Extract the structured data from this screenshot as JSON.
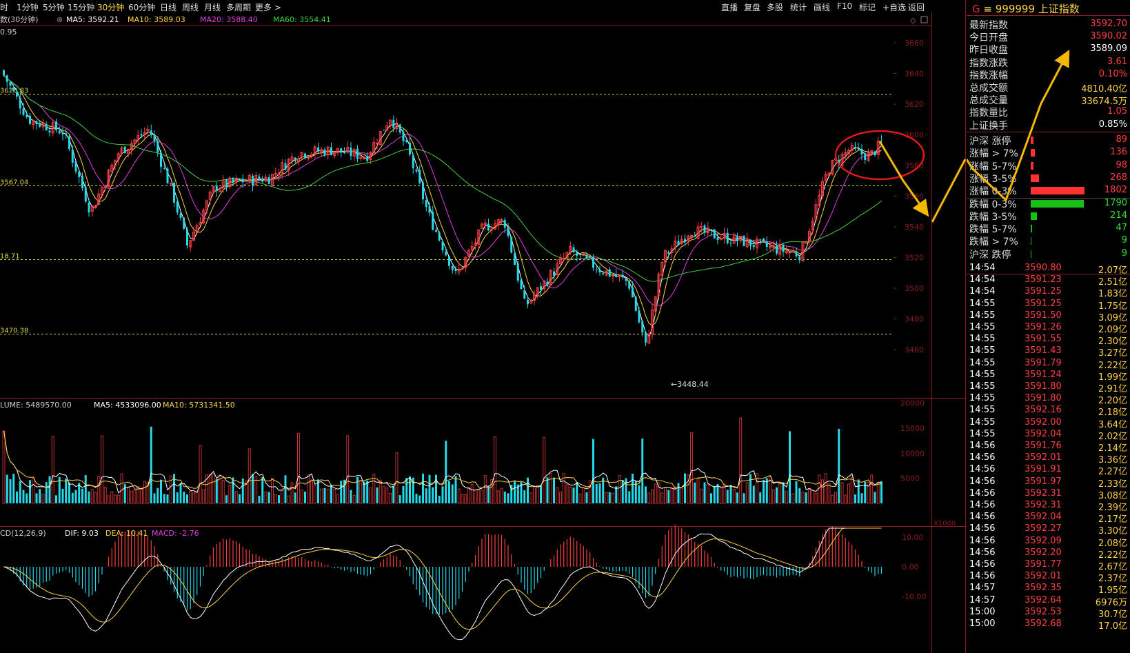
{
  "toolbar": {
    "periods": [
      "时",
      "1分钟",
      "5分钟",
      "15分钟",
      "30分钟",
      "60分钟",
      "日线",
      "周线",
      "月线",
      "多周期",
      "更多 >"
    ],
    "active_period": "30分钟",
    "actions": [
      "直播",
      "复盘",
      "多股",
      "统计",
      "画线",
      "F10",
      "标记",
      "+自选",
      "返回"
    ]
  },
  "indicator_bar": {
    "name": "数(30分钟)",
    "ma5": "MA5: 3592.21",
    "ma10": "MA10: 3589.03",
    "ma20": "MA20: 3588.40",
    "ma60": "MA60: 3554.41",
    "sub": "0.95"
  },
  "colors": {
    "up": "#ff4040",
    "down": "#26d9e8",
    "ma5": "#ffffff",
    "ma10": "#ffd24a",
    "ma20": "#e040e0",
    "ma60": "#40d040",
    "grid": "#8a1c1c",
    "level_line": "#d8d840",
    "annotation_arrow": "#f5b800",
    "annotation_circle": "#e01818"
  },
  "price_axis": [
    "3660",
    "3640",
    "3620",
    "3600",
    "3580",
    "3560",
    "3540",
    "3520",
    "3500",
    "3480",
    "3460"
  ],
  "price_levels": [
    {
      "label": "3626.83",
      "value": 3626.83
    },
    {
      "label": "3567.04",
      "value": 3567.04
    },
    {
      "label": "18.71",
      "value": 3518.71
    },
    {
      "label": "3470.38",
      "value": 3470.38
    }
  ],
  "low_marker": "3448.44",
  "volume_bar": {
    "volume": "LUME: 5489570.00",
    "ma5": "MA5: 4533096.00",
    "ma10": "MA10: 5731341.50"
  },
  "volume_axis": [
    "20000",
    "15000",
    "10000",
    "5000"
  ],
  "volume_unit": "X1000",
  "macd_bar": {
    "name": "CD(12,26,9)",
    "dif": "DIF: 9.03",
    "dea": "DEA: 10.41",
    "macd": "MACD: -2.76"
  },
  "macd_axis": [
    "10.00",
    "0.00",
    "-10.00"
  ],
  "quote": {
    "prefix": "G",
    "title": "≡ 999999 上证指数",
    "rows": [
      {
        "label": "最新指数",
        "value": "3592.70",
        "color": "red"
      },
      {
        "label": "今日开盘",
        "value": "3590.02",
        "color": "red"
      },
      {
        "label": "昨日收盘",
        "value": "3589.09",
        "color": "white"
      },
      {
        "label": "指数涨跌",
        "value": "3.61",
        "color": "red"
      },
      {
        "label": "指数涨幅",
        "value": "0.10%",
        "color": "red"
      },
      {
        "label": "总成交额",
        "value": "4810.40亿",
        "color": "yellow"
      },
      {
        "label": "总成交量",
        "value": "33674.5万",
        "color": "yellow"
      },
      {
        "label": "指数量比",
        "value": "1.05",
        "color": "red"
      },
      {
        "label": "上证换手",
        "value": "0.85%",
        "color": "white"
      }
    ],
    "breadth": [
      {
        "label": "沪深 涨停",
        "value": "89",
        "count": 89,
        "dir": "up"
      },
      {
        "label": "涨幅 > 7%",
        "value": "136",
        "count": 136,
        "dir": "up"
      },
      {
        "label": "涨幅 5-7%",
        "value": "98",
        "count": 98,
        "dir": "up"
      },
      {
        "label": "涨幅 3-5%",
        "value": "268",
        "count": 268,
        "dir": "up"
      },
      {
        "label": "涨幅 0-3%",
        "value": "1802",
        "count": 1802,
        "dir": "up"
      },
      {
        "label": "跌幅 0-3%",
        "value": "1790",
        "count": 1790,
        "dir": "down"
      },
      {
        "label": "跌幅 3-5%",
        "value": "214",
        "count": 214,
        "dir": "down"
      },
      {
        "label": "跌幅 5-7%",
        "value": "47",
        "count": 47,
        "dir": "down"
      },
      {
        "label": "跌幅 > 7%",
        "value": "9",
        "count": 9,
        "dir": "down"
      },
      {
        "label": "沪深 跌停",
        "value": "9",
        "count": 9,
        "dir": "down"
      }
    ],
    "ticks": [
      {
        "time": "14:54",
        "price": "3590.80",
        "amount": "2.07亿"
      },
      {
        "time": "14:54",
        "price": "3591.23",
        "amount": "2.51亿"
      },
      {
        "time": "14:54",
        "price": "3591.25",
        "amount": "1.83亿"
      },
      {
        "time": "14:55",
        "price": "3591.25",
        "amount": "1.75亿"
      },
      {
        "time": "14:55",
        "price": "3591.50",
        "amount": "3.09亿"
      },
      {
        "time": "14:55",
        "price": "3591.26",
        "amount": "2.09亿"
      },
      {
        "time": "14:55",
        "price": "3591.55",
        "amount": "2.30亿"
      },
      {
        "time": "14:55",
        "price": "3591.43",
        "amount": "3.27亿"
      },
      {
        "time": "14:55",
        "price": "3591.79",
        "amount": "2.22亿"
      },
      {
        "time": "14:55",
        "price": "3591.24",
        "amount": "1.99亿"
      },
      {
        "time": "14:55",
        "price": "3591.80",
        "amount": "2.91亿"
      },
      {
        "time": "14:55",
        "price": "3591.80",
        "amount": "2.20亿"
      },
      {
        "time": "14:55",
        "price": "3592.16",
        "amount": "2.18亿"
      },
      {
        "time": "14:55",
        "price": "3592.00",
        "amount": "3.64亿"
      },
      {
        "time": "14:55",
        "price": "3592.04",
        "amount": "2.02亿"
      },
      {
        "time": "14:56",
        "price": "3591.76",
        "amount": "2.14亿"
      },
      {
        "time": "14:56",
        "price": "3592.01",
        "amount": "3.36亿"
      },
      {
        "time": "14:56",
        "price": "3591.91",
        "amount": "2.27亿"
      },
      {
        "time": "14:56",
        "price": "3591.97",
        "amount": "2.33亿"
      },
      {
        "time": "14:56",
        "price": "3592.31",
        "amount": "3.08亿"
      },
      {
        "time": "14:56",
        "price": "3592.31",
        "amount": "2.39亿"
      },
      {
        "time": "14:56",
        "price": "3592.04",
        "amount": "2.17亿"
      },
      {
        "time": "14:56",
        "price": "3592.27",
        "amount": "3.30亿"
      },
      {
        "time": "14:56",
        "price": "3592.09",
        "amount": "2.08亿"
      },
      {
        "time": "14:56",
        "price": "3592.20",
        "amount": "2.22亿"
      },
      {
        "time": "14:56",
        "price": "3591.77",
        "amount": "2.67亿"
      },
      {
        "time": "14:56",
        "price": "3592.01",
        "amount": "2.37亿"
      },
      {
        "time": "14:57",
        "price": "3592.35",
        "amount": "1.95亿"
      },
      {
        "time": "14:57",
        "price": "3592.64",
        "amount": "6976万"
      },
      {
        "time": "15:00",
        "price": "3592.53",
        "amount": "30.7亿"
      },
      {
        "time": "15:00",
        "price": "3592.68",
        "amount": "17.0亿"
      }
    ]
  }
}
